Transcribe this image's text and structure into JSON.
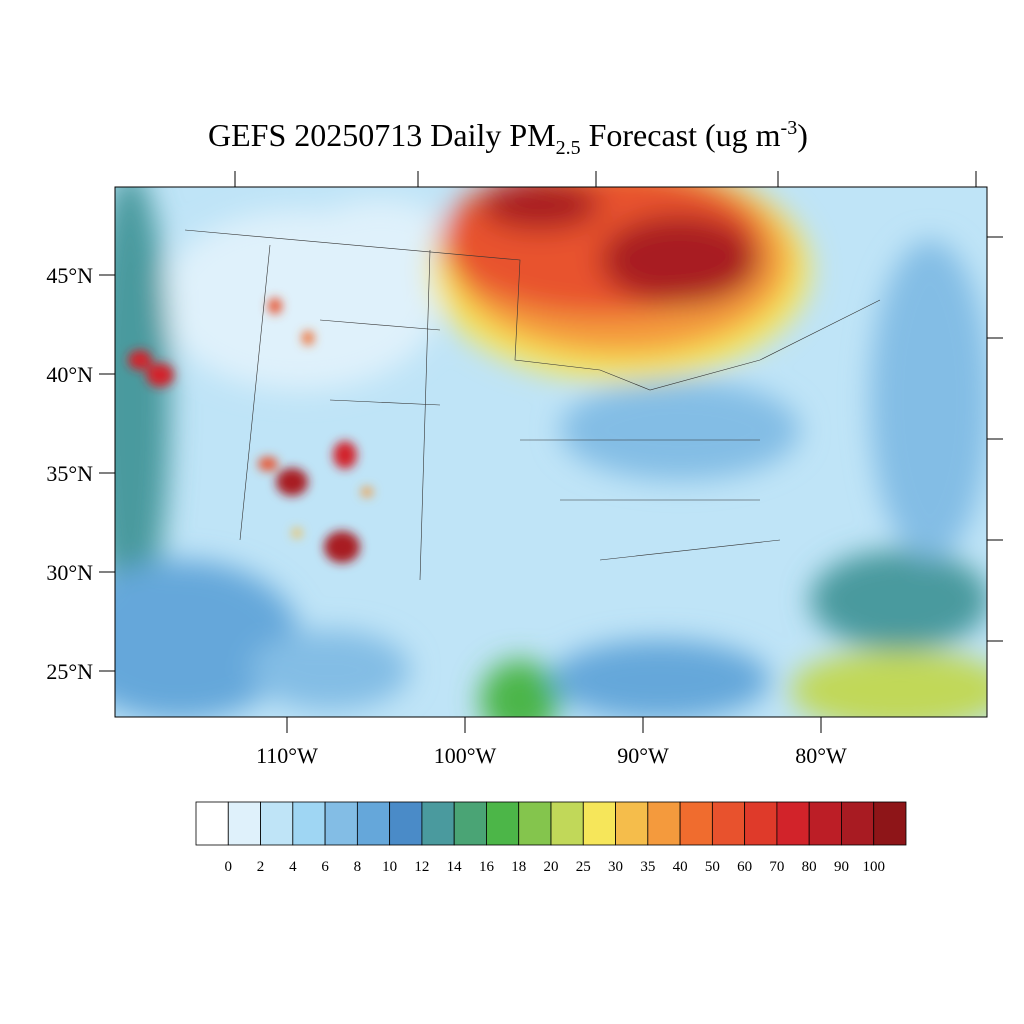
{
  "title": {
    "main": "GEFS 20250713 Daily PM",
    "subscript": "2.5",
    "middle": " Forecast (ug m",
    "superscript": "-3",
    "end": ")"
  },
  "lat_labels": [
    "45°N",
    "40°N",
    "35°N",
    "30°N",
    "25°N"
  ],
  "lon_labels": [
    "110°W",
    "100°W",
    "90°W",
    "80°W"
  ],
  "colorbar": {
    "colors": [
      "#ffffff",
      "#dff1fb",
      "#bfe4f7",
      "#9fd6f3",
      "#83bde5",
      "#65a7da",
      "#4a8bc8",
      "#4a9a9e",
      "#4aa475",
      "#4cb648",
      "#84c54d",
      "#c1d859",
      "#f6e65a",
      "#f5bd4b",
      "#f49a3d",
      "#f06c2e",
      "#e8522d",
      "#df3a2a",
      "#d2232a",
      "#bc1e26",
      "#a81b22",
      "#8e1518"
    ],
    "labels": [
      "0",
      "2",
      "4",
      "6",
      "8",
      "10",
      "12",
      "14",
      "16",
      "18",
      "20",
      "25",
      "30",
      "35",
      "40",
      "50",
      "60",
      "70",
      "80",
      "90",
      "100"
    ]
  }
}
